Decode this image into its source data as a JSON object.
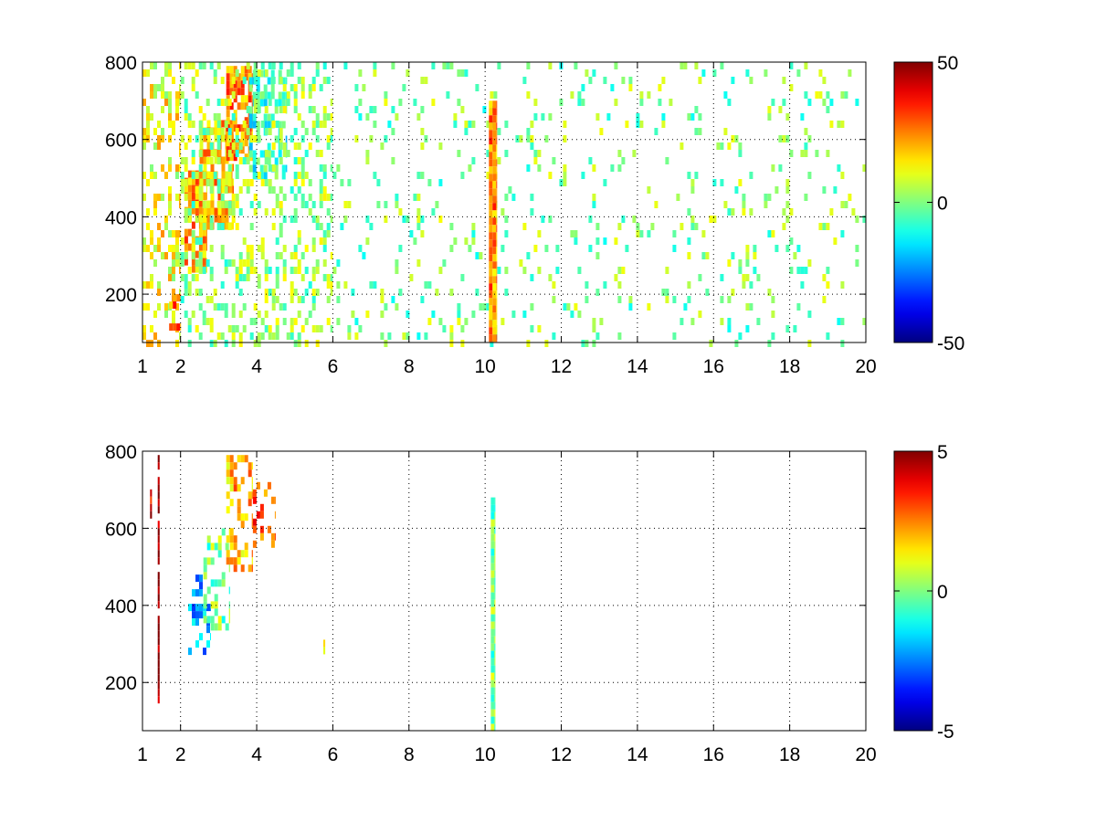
{
  "chart_data": [
    {
      "type": "heatmap",
      "title": "",
      "xlabel": "",
      "ylabel": "",
      "xlim": [
        1,
        20
      ],
      "ylim": [
        75,
        800
      ],
      "x_ticks": [
        1,
        2,
        4,
        6,
        8,
        10,
        12,
        14,
        16,
        18,
        20
      ],
      "x_tick_labels": [
        "1",
        "2",
        "4",
        "6",
        "8",
        "10",
        "12",
        "14",
        "16",
        "18",
        "20"
      ],
      "y_ticks": [
        200,
        400,
        600,
        800
      ],
      "y_tick_labels": [
        "200",
        "400",
        "600",
        "800"
      ],
      "grid": true,
      "colormap": "jet",
      "clim": [
        -50,
        50
      ],
      "colorbar_ticks": [
        -50,
        0,
        50
      ],
      "colorbar_tick_labels": [
        "-50",
        "0",
        "50"
      ],
      "colorbar_placement": "right",
      "features": [
        {
          "x_range": [
            1.0,
            2.0
          ],
          "y_range": [
            80,
            800
          ],
          "value": 12,
          "density": 0.35
        },
        {
          "x_range": [
            1.7,
            2.0
          ],
          "y_range": [
            120,
            200
          ],
          "value": 25,
          "density": 0.5
        },
        {
          "x_range": [
            2.1,
            2.7
          ],
          "y_range": [
            270,
            520
          ],
          "value": 22,
          "density": 0.75
        },
        {
          "x_range": [
            2.5,
            3.4
          ],
          "y_range": [
            380,
            650
          ],
          "value": 20,
          "density": 0.75
        },
        {
          "x_range": [
            3.2,
            3.9
          ],
          "y_range": [
            550,
            790
          ],
          "value": 25,
          "density": 0.75
        },
        {
          "x_range": [
            3.8,
            4.8
          ],
          "y_range": [
            500,
            780
          ],
          "value": -8,
          "density": 0.6
        },
        {
          "x_range": [
            2.0,
            6.0
          ],
          "y_range": [
            80,
            800
          ],
          "value": 2,
          "density": 0.3
        },
        {
          "x_range": [
            6.0,
            20.0
          ],
          "y_range": [
            80,
            800
          ],
          "value": 0,
          "density": 0.09
        },
        {
          "x_range": [
            10.1,
            10.3
          ],
          "y_range": [
            80,
            700
          ],
          "value": 24,
          "density": 1.0
        }
      ]
    },
    {
      "type": "heatmap",
      "title": "",
      "xlabel": "",
      "ylabel": "",
      "xlim": [
        1,
        20
      ],
      "ylim": [
        75,
        800
      ],
      "x_ticks": [
        1,
        2,
        4,
        6,
        8,
        10,
        12,
        14,
        16,
        18,
        20
      ],
      "x_tick_labels": [
        "1",
        "2",
        "4",
        "6",
        "8",
        "10",
        "12",
        "14",
        "16",
        "18",
        "20"
      ],
      "y_ticks": [
        200,
        400,
        600,
        800
      ],
      "y_tick_labels": [
        "200",
        "400",
        "600",
        "800"
      ],
      "grid": true,
      "colormap": "jet",
      "clim": [
        -5,
        5
      ],
      "colorbar_ticks": [
        -5,
        0,
        5
      ],
      "colorbar_tick_labels": [
        "-5",
        "0",
        "5"
      ],
      "colorbar_placement": "right",
      "features": [
        {
          "x_range": [
            1.4,
            1.45
          ],
          "y_range": [
            160,
            790
          ],
          "value": 5,
          "density": 0.9
        },
        {
          "x_range": [
            1.2,
            1.25
          ],
          "y_range": [
            620,
            720
          ],
          "value": 4,
          "density": 0.5
        },
        {
          "x_range": [
            2.2,
            2.8
          ],
          "y_range": [
            280,
            480
          ],
          "value": -2,
          "density": 0.35
        },
        {
          "x_range": [
            2.6,
            3.3
          ],
          "y_range": [
            350,
            600
          ],
          "value": 0,
          "density": 0.45
        },
        {
          "x_range": [
            3.2,
            3.9
          ],
          "y_range": [
            500,
            790
          ],
          "value": 2,
          "density": 0.45
        },
        {
          "x_range": [
            3.9,
            4.5
          ],
          "y_range": [
            550,
            720
          ],
          "value": 3,
          "density": 0.25
        },
        {
          "x_range": [
            5.75,
            5.8
          ],
          "y_range": [
            280,
            330
          ],
          "value": 2,
          "density": 0.8
        },
        {
          "x_range": [
            10.15,
            10.25
          ],
          "y_range": [
            80,
            680
          ],
          "value": 0,
          "density": 1.0
        }
      ]
    }
  ]
}
